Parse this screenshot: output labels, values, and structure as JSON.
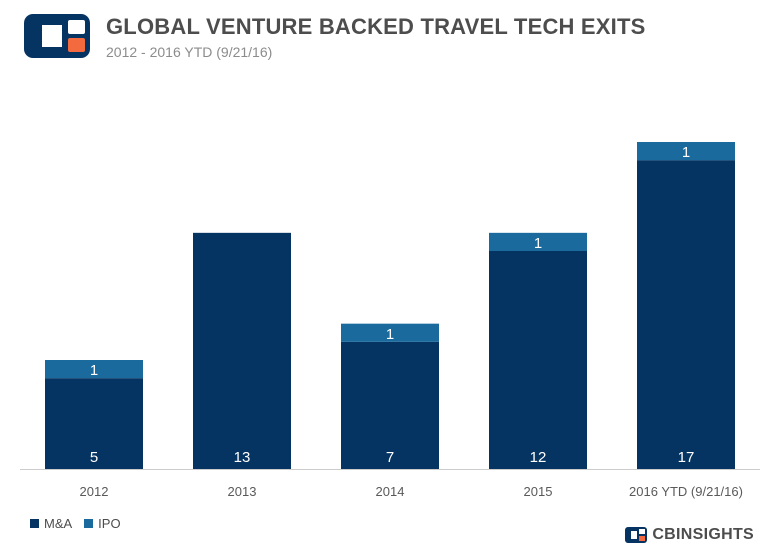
{
  "header": {
    "title": "GLOBAL VENTURE BACKED TRAVEL TECH EXITS",
    "subtitle": "2012 - 2016 YTD (9/21/16)"
  },
  "brand": {
    "name": "CBINSIGHTS",
    "logo_icon": "cb-insights-logo-icon"
  },
  "colors": {
    "ma": "#063462",
    "ipo": "#1a6a9e",
    "logo_orange": "#f26a3d",
    "text": "#4d4d4d",
    "axis": "#cccccc"
  },
  "chart_data": {
    "type": "bar",
    "stacked": true,
    "categories": [
      "2012",
      "2013",
      "2014",
      "2015",
      "2016 YTD (9/21/16)"
    ],
    "series": [
      {
        "name": "M&A",
        "values": [
          5,
          13,
          7,
          12,
          17
        ]
      },
      {
        "name": "IPO",
        "values": [
          1,
          0,
          1,
          1,
          1
        ]
      }
    ],
    "title": "GLOBAL VENTURE BACKED TRAVEL TECH EXITS",
    "subtitle": "2012 - 2016 YTD (9/21/16)",
    "xlabel": "",
    "ylabel": "",
    "ylim": [
      0,
      18
    ],
    "grid": false,
    "legend": "bottom-left"
  }
}
